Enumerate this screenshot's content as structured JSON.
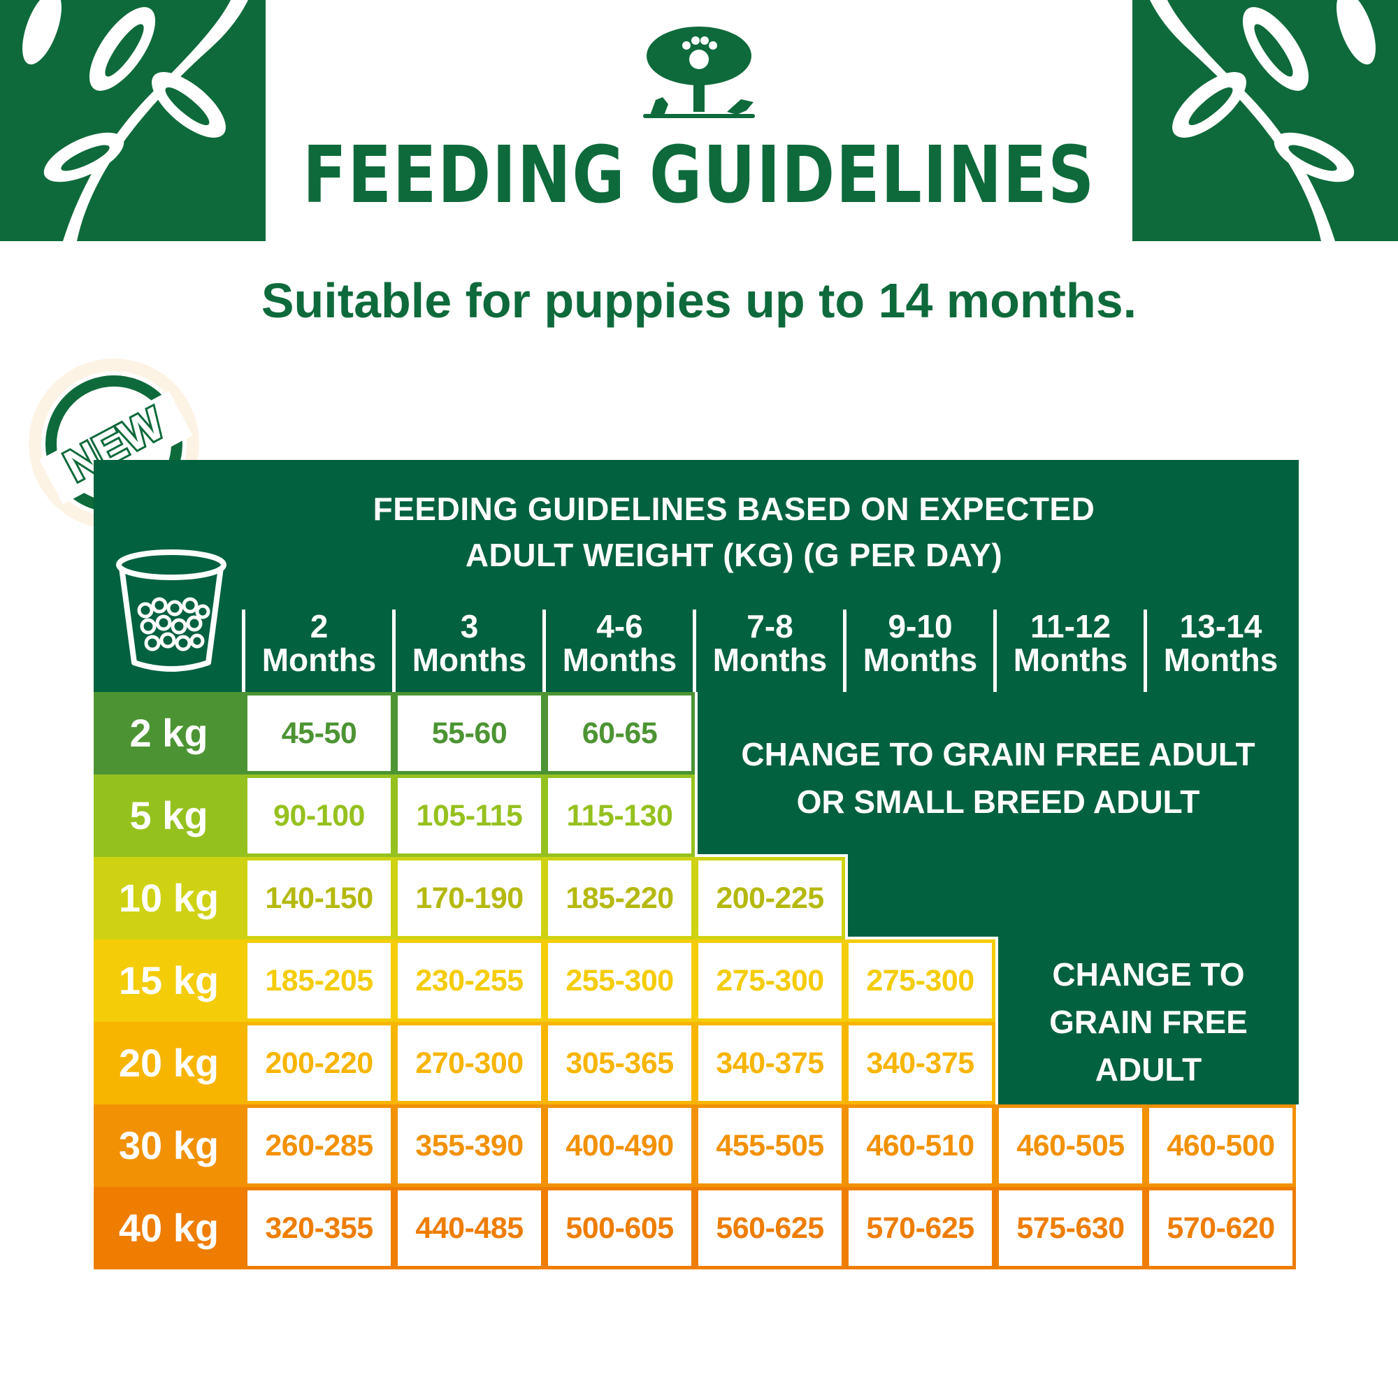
{
  "header": {
    "title": "FEEDING GUIDELINES",
    "subtitle": "Suitable for puppies up to 14 months."
  },
  "badge": {
    "label": "NEW"
  },
  "table": {
    "heading_line1": "FEEDING GUIDELINES BASED ON EXPECTED",
    "heading_line2": "ADULT WEIGHT (KG) (G PER DAY)",
    "columns": [
      {
        "l1": "2",
        "l2": "Months"
      },
      {
        "l1": "3",
        "l2": "Months"
      },
      {
        "l1": "4-6",
        "l2": "Months"
      },
      {
        "l1": "7-8",
        "l2": "Months"
      },
      {
        "l1": "9-10",
        "l2": "Months"
      },
      {
        "l1": "11-12",
        "l2": "Months"
      },
      {
        "l1": "13-14",
        "l2": "Months"
      }
    ],
    "rows": [
      {
        "label": "2 kg",
        "color": "#4c9433",
        "cells": [
          "45-50",
          "55-60",
          "60-65"
        ]
      },
      {
        "label": "5 kg",
        "color": "#95c11f",
        "cells": [
          "90-100",
          "105-115",
          "115-130"
        ]
      },
      {
        "label": "10 kg",
        "color": "#cfd212",
        "cells": [
          "140-150",
          "170-190",
          "185-220",
          "200-225"
        ]
      },
      {
        "label": "15 kg",
        "color": "#f4cc07",
        "cells": [
          "185-205",
          "230-255",
          "255-300",
          "275-300",
          "275-300"
        ]
      },
      {
        "label": "20 kg",
        "color": "#f7b500",
        "cells": [
          "200-220",
          "270-300",
          "305-365",
          "340-375",
          "340-375"
        ]
      },
      {
        "label": "30 kg",
        "color": "#f29103",
        "cells": [
          "260-285",
          "355-390",
          "400-490",
          "455-505",
          "460-510",
          "460-505",
          "460-500"
        ]
      },
      {
        "label": "40 kg",
        "color": "#ee7d01",
        "cells": [
          "320-355",
          "440-485",
          "500-605",
          "560-625",
          "570-625",
          "575-630",
          "570-620"
        ]
      }
    ],
    "message_small": {
      "line1": "CHANGE TO GRAIN FREE ADULT",
      "line2": "OR SMALL BREED ADULT"
    },
    "message_adult": {
      "line1": "CHANGE TO",
      "line2": "GRAIN FREE",
      "line3": "ADULT"
    }
  },
  "colors": {
    "brand_green": "#0e6a3a",
    "table_green": "#02613f"
  },
  "icons": [
    "tree-paw-logo-icon",
    "feeding-cup-icon",
    "leaf-branch-icon"
  ]
}
